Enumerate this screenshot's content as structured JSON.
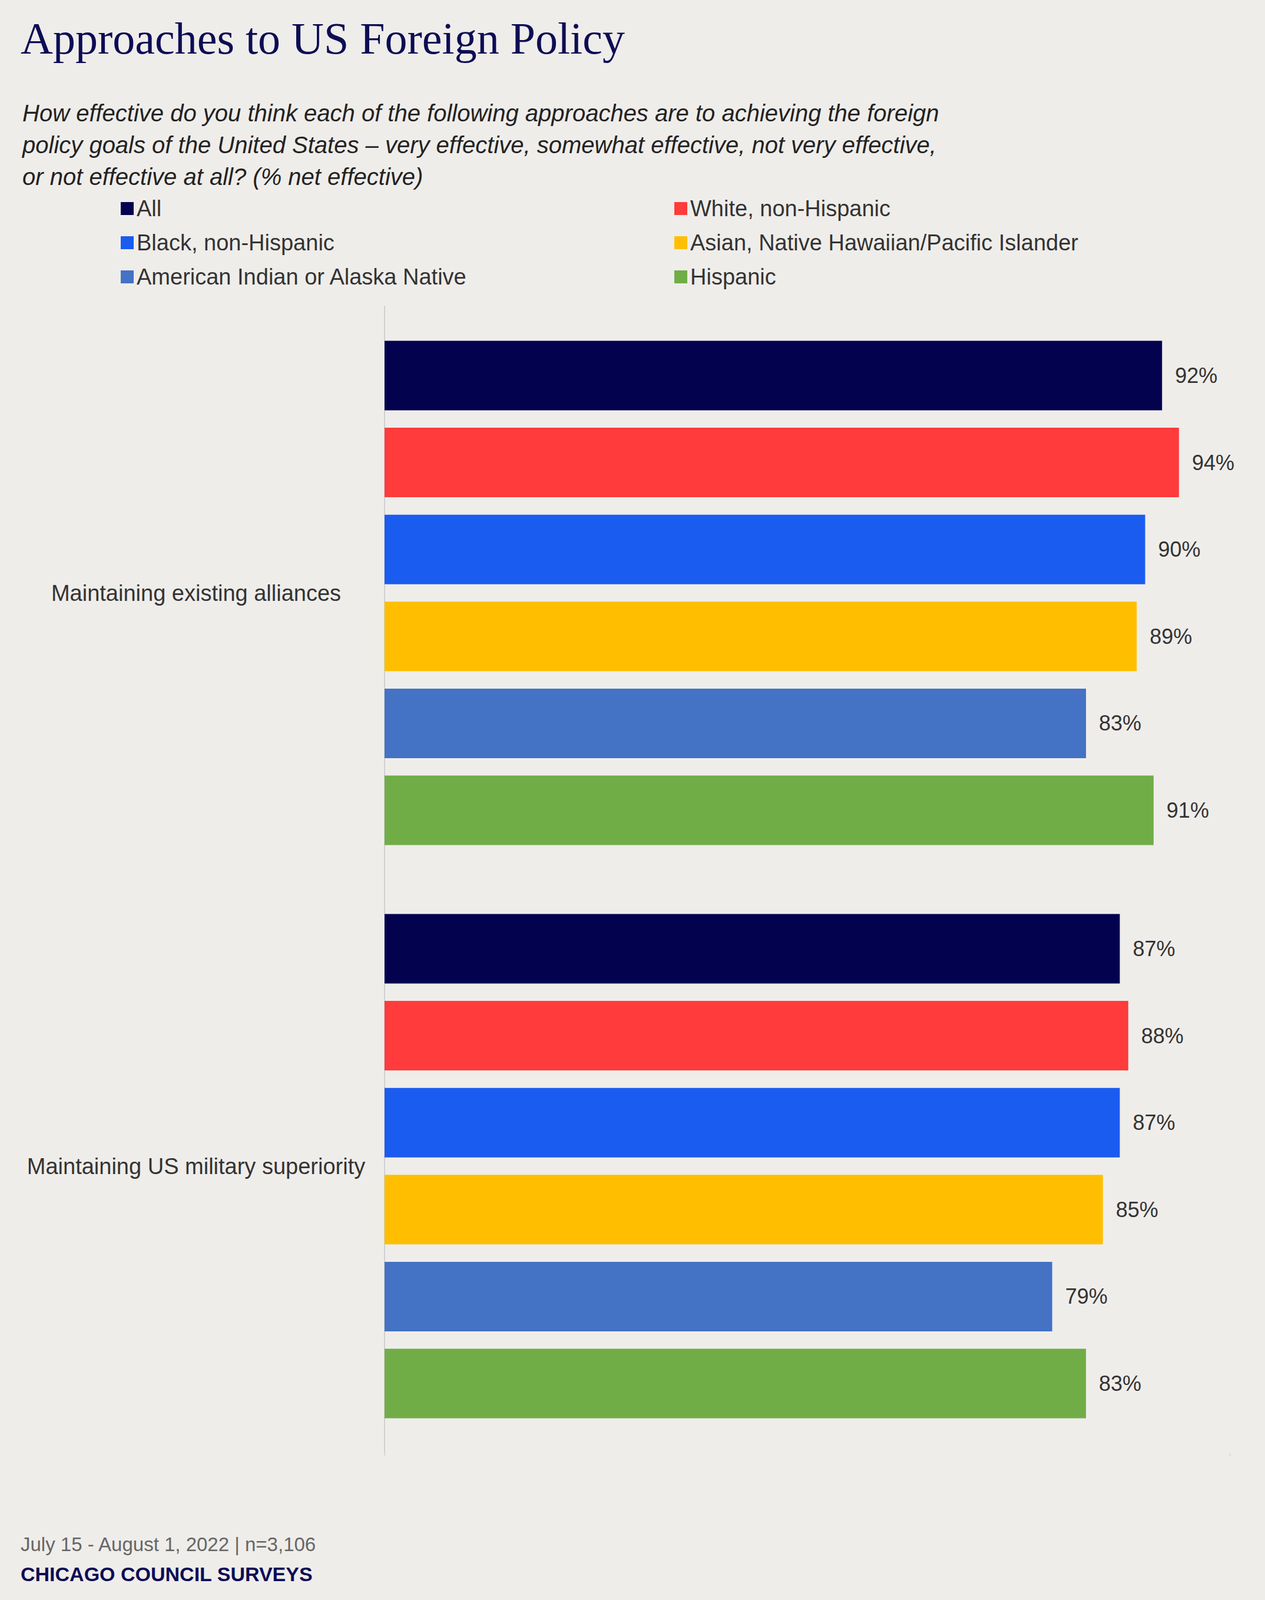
{
  "chart_data": {
    "type": "bar",
    "title": "Approaches to US Foreign Policy",
    "subtitle": "How effective do you think each of the following approaches are to achieving the foreign policy goals of the United States – very effective, somewhat effective, not very effective, or not effective at all? (% net effective)",
    "annotations": [
      "July 15 - August 1, 2022 | n=3,106",
      "CHICAGO COUNCIL SURVEYS"
    ],
    "orientation": "horizontal",
    "categories": [
      "Maintaining existing alliances",
      "Maintaining US military superiority"
    ],
    "series": [
      {
        "name": "All",
        "color": "#02024f",
        "values": [
          92,
          87
        ],
        "value_labels": [
          "92%",
          "87%"
        ]
      },
      {
        "name": "White, non-Hispanic",
        "color": "#ff3b3b",
        "values": [
          94,
          88
        ],
        "value_labels": [
          "94%",
          "88%"
        ]
      },
      {
        "name": "Black, non-Hispanic",
        "color": "#1a5cf0",
        "values": [
          90,
          87
        ],
        "value_labels": [
          "90%",
          "87%"
        ]
      },
      {
        "name": "Asian, Native Hawaiian/Pacific Islander",
        "color": "#ffbf00",
        "values": [
          89,
          85
        ],
        "value_labels": [
          "89%",
          "85%"
        ]
      },
      {
        "name": "American Indian or Alaska Native",
        "color": "#4472c4",
        "values": [
          83,
          79
        ],
        "value_labels": [
          "83%",
          "79%"
        ]
      },
      {
        "name": "Hispanic",
        "color": "#70ad47",
        "values": [
          91,
          83
        ],
        "value_labels": [
          "91%",
          "83%"
        ]
      }
    ],
    "xlim": [
      0,
      100
    ],
    "xticks": [
      0,
      100
    ],
    "grid": false,
    "legend": "top",
    "data_labels": true,
    "tick_labels": "y"
  }
}
